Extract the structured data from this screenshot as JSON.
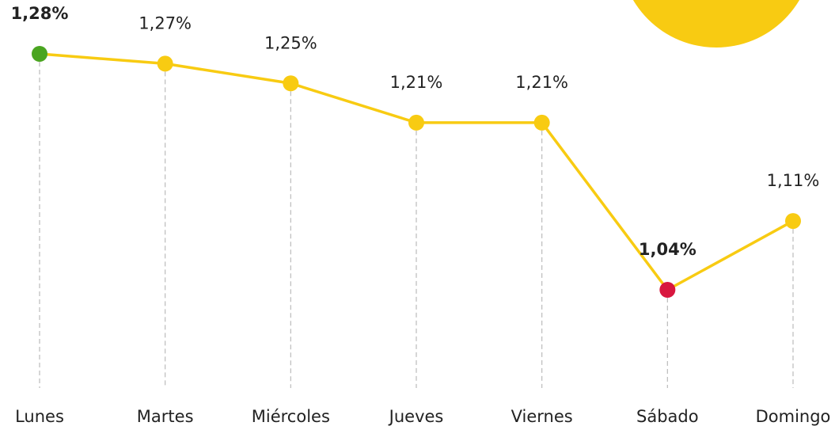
{
  "chart_data": {
    "type": "line",
    "categories": [
      "Lunes",
      "Martes",
      "Miércoles",
      "Jueves",
      "Viernes",
      "Sábado",
      "Domingo"
    ],
    "values": [
      1.28,
      1.27,
      1.25,
      1.21,
      1.21,
      1.04,
      1.11
    ],
    "value_labels": [
      "1,28%",
      "1,27%",
      "1,25%",
      "1,21%",
      "1,21%",
      "1,04%",
      "1,11%"
    ],
    "color": "#f8cb12",
    "marker_colors": [
      "#4aa520",
      "#f8cb12",
      "#f8cb12",
      "#f8cb12",
      "#f8cb12",
      "#d8173f",
      "#f8cb12"
    ]
  }
}
